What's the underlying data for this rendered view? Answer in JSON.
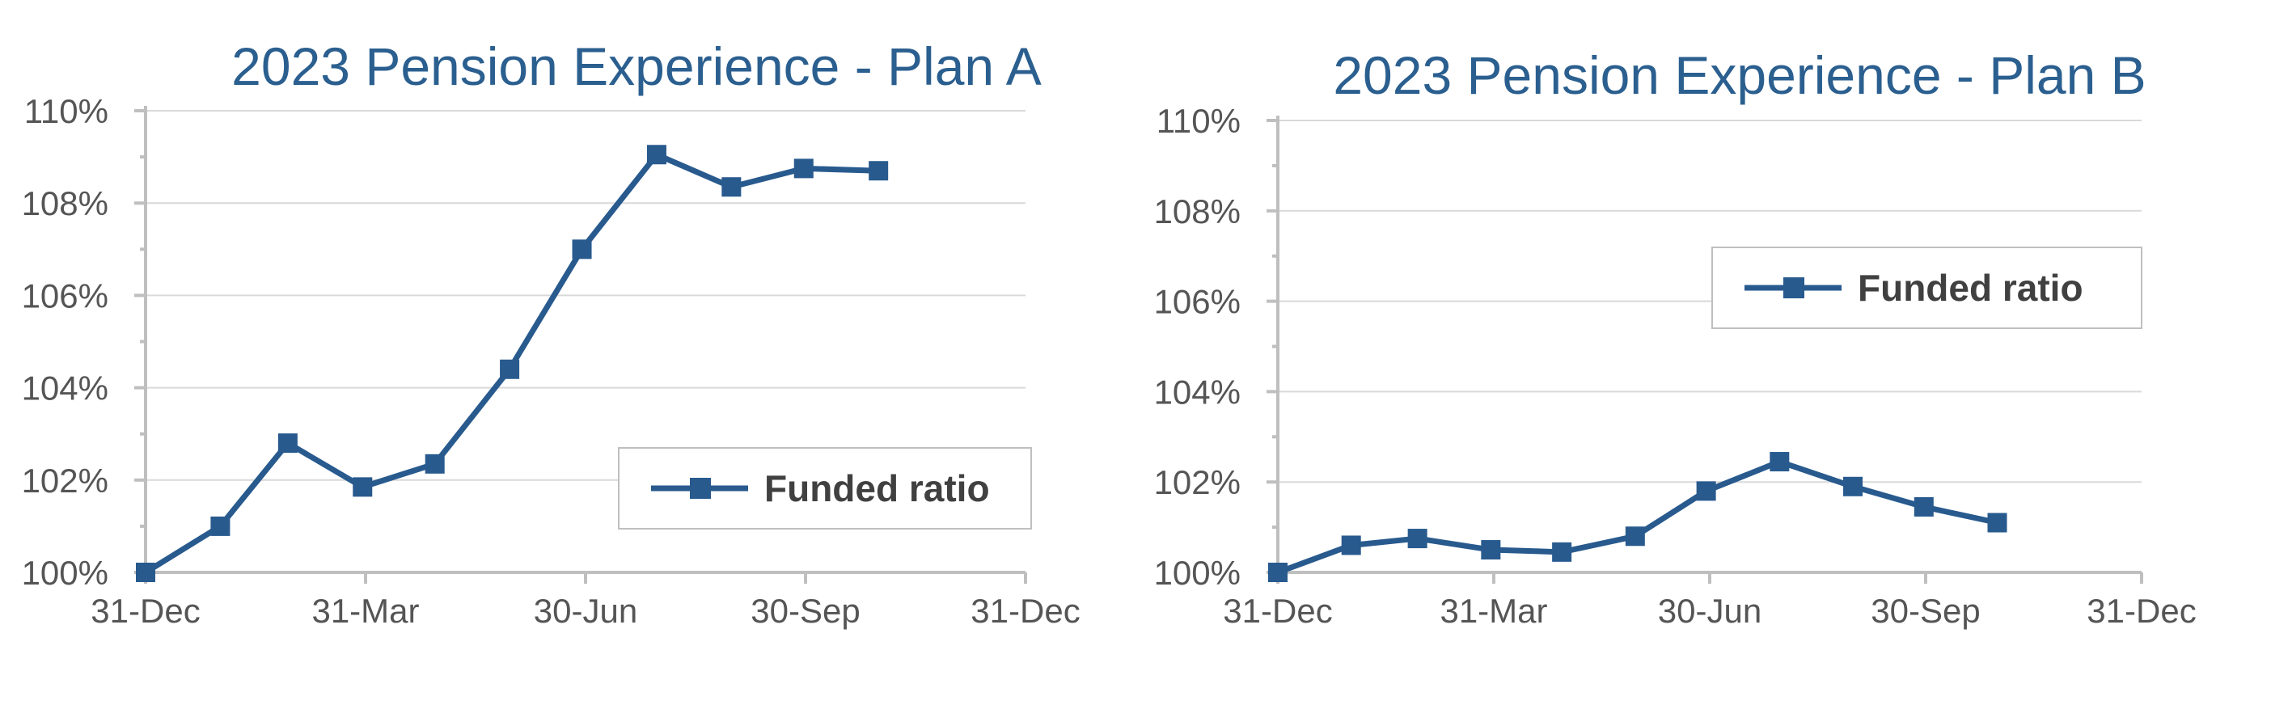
{
  "chart_data": [
    {
      "type": "line",
      "title": "2023 Pension Experience - Plan A",
      "xlabel": "",
      "ylabel": "",
      "x_ticks": [
        "31-Dec",
        "31-Mar",
        "30-Jun",
        "30-Sep",
        "31-Dec"
      ],
      "y_ticks": [
        "100%",
        "102%",
        "104%",
        "106%",
        "108%",
        "110%"
      ],
      "ylim": [
        100,
        110
      ],
      "xlim": [
        "2022-12-31",
        "2023-12-31"
      ],
      "grid": true,
      "legend_position": "bottom-right",
      "color": "#285a8e",
      "series": [
        {
          "name": "Funded ratio",
          "x": [
            "2022-12-31",
            "2023-01-31",
            "2023-02-28",
            "2023-03-31",
            "2023-04-30",
            "2023-05-31",
            "2023-06-30",
            "2023-07-31",
            "2023-08-31",
            "2023-09-30",
            "2023-10-31"
          ],
          "values": [
            100.0,
            101.0,
            102.8,
            101.85,
            102.35,
            104.4,
            107.0,
            109.05,
            108.35,
            108.75,
            108.7
          ]
        }
      ]
    },
    {
      "type": "line",
      "title": "2023 Pension Experience - Plan B",
      "xlabel": "",
      "ylabel": "",
      "x_ticks": [
        "31-Dec",
        "31-Mar",
        "30-Jun",
        "30-Sep",
        "31-Dec"
      ],
      "y_ticks": [
        "100%",
        "102%",
        "104%",
        "106%",
        "108%",
        "110%"
      ],
      "ylim": [
        100,
        110
      ],
      "xlim": [
        "2022-12-31",
        "2023-12-31"
      ],
      "grid": true,
      "legend_position": "top-right",
      "color": "#285a8e",
      "series": [
        {
          "name": "Funded ratio",
          "x": [
            "2022-12-31",
            "2023-01-31",
            "2023-02-28",
            "2023-03-31",
            "2023-04-30",
            "2023-05-31",
            "2023-06-30",
            "2023-07-31",
            "2023-08-31",
            "2023-09-30",
            "2023-10-31"
          ],
          "values": [
            100.0,
            100.6,
            100.75,
            100.5,
            100.45,
            100.8,
            101.8,
            102.45,
            101.9,
            101.45,
            101.1
          ]
        }
      ]
    }
  ]
}
